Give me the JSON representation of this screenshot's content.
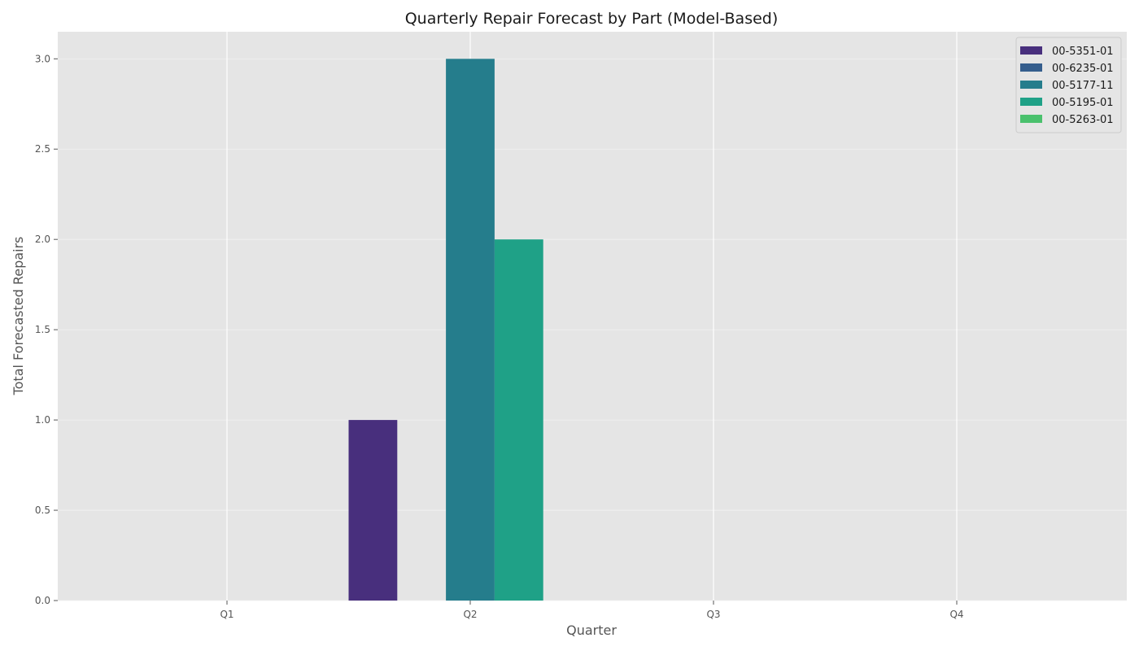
{
  "chart_data": {
    "type": "bar",
    "title": "Quarterly Repair Forecast by Part (Model-Based)",
    "xlabel": "Quarter",
    "ylabel": "Total Forecasted Repairs",
    "categories": [
      "Q1",
      "Q2",
      "Q3",
      "Q4"
    ],
    "ylim": [
      0,
      3.15
    ],
    "yticks": [
      "0.0",
      "0.5",
      "1.0",
      "1.5",
      "2.0",
      "2.5",
      "3.0"
    ],
    "grid": true,
    "legend_position": "top-right",
    "series": [
      {
        "name": "00-5351-01",
        "color": "#482f7d",
        "values": [
          0,
          1,
          0,
          0
        ]
      },
      {
        "name": "00-6235-01",
        "color": "#355e8d",
        "values": [
          0,
          0,
          0,
          0
        ]
      },
      {
        "name": "00-5177-11",
        "color": "#257d8c",
        "values": [
          0,
          3,
          0,
          0
        ]
      },
      {
        "name": "00-5195-01",
        "color": "#1fa187",
        "values": [
          0,
          2,
          0,
          0
        ]
      },
      {
        "name": "00-5263-01",
        "color": "#4ac16d",
        "values": [
          0,
          0,
          0,
          0
        ]
      }
    ]
  }
}
